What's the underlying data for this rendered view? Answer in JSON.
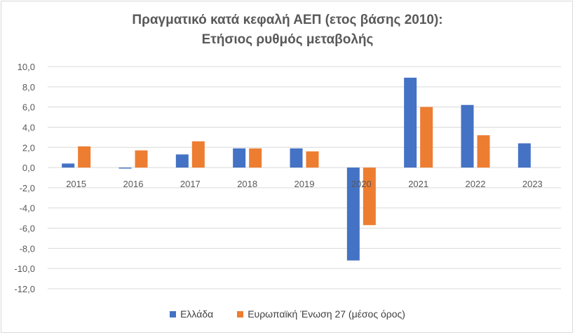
{
  "chart_data": {
    "type": "bar",
    "title": "Πραγματικό κατά κεφαλή ΑΕΠ (ετος βάσης 2010):",
    "subtitle": "Ετήσιος ρυθμός μεταβολής",
    "xlabel": "",
    "ylabel": "",
    "categories": [
      "2015",
      "2016",
      "2017",
      "2018",
      "2019",
      "2020",
      "2021",
      "2022",
      "2023"
    ],
    "series": [
      {
        "name": "Ελλάδα",
        "color": "#4472c4",
        "values": [
          0.4,
          -0.1,
          1.3,
          1.9,
          1.9,
          -9.2,
          8.9,
          6.2,
          2.4
        ]
      },
      {
        "name": "Ευρωπαϊκή Ένωση 27 (μέσος όρος)",
        "color": "#ed7d31",
        "values": [
          2.1,
          1.7,
          2.6,
          1.9,
          1.6,
          -5.7,
          6.0,
          3.2,
          null
        ]
      }
    ],
    "ylim": [
      -12,
      10
    ],
    "yticks": [
      10,
      8,
      6,
      4,
      2,
      0,
      -2,
      -4,
      -6,
      -8,
      -10,
      -12
    ],
    "ytick_labels": [
      "10,0",
      "8,0",
      "6,0",
      "4,0",
      "2,0",
      "0,0",
      "-2,0",
      "-4,0",
      "-6,0",
      "-8,0",
      "-10,0",
      "-12,0"
    ],
    "grid": true,
    "legend_position": "bottom"
  }
}
